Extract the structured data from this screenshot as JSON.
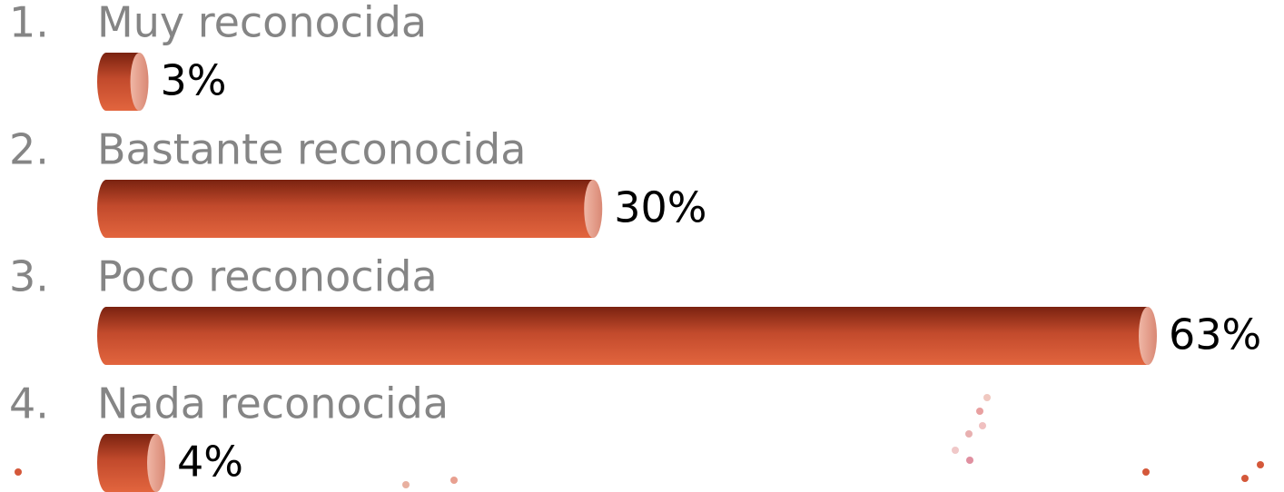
{
  "chart_data": {
    "type": "bar",
    "orientation": "horizontal",
    "numbers": [
      "1.",
      "2.",
      "3.",
      "4."
    ],
    "categories": [
      "Muy reconocida",
      "Bastante reconocida",
      "Poco reconocida",
      "Nada reconocida"
    ],
    "values": [
      3,
      30,
      63,
      4
    ],
    "value_labels": [
      "3%",
      "30%",
      "63%",
      "4%"
    ],
    "color": "#d4583a"
  }
}
